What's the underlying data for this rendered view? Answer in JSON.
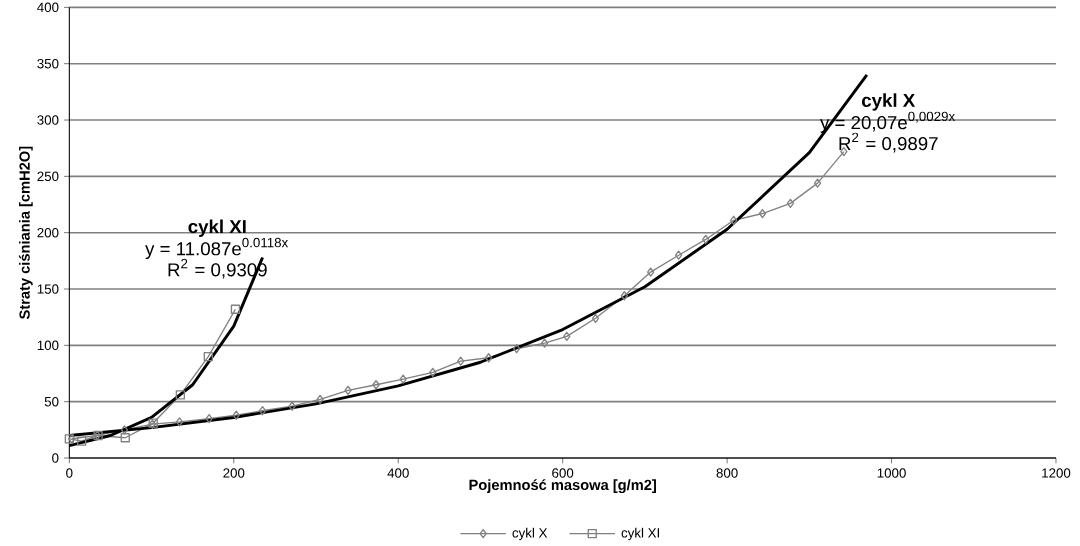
{
  "chart_data": {
    "type": "line",
    "xlabel": "Pojemność masowa [g/m2]",
    "ylabel": "Straty ciśniania [cmH2O]",
    "xlim": [
      0,
      1200
    ],
    "xticks": [
      0,
      200,
      400,
      600,
      800,
      1000,
      1200
    ],
    "ylim": [
      0,
      400
    ],
    "yticks": [
      0,
      50,
      100,
      150,
      200,
      250,
      300,
      350,
      400
    ],
    "grid": "y",
    "legend": "bottom",
    "series": [
      {
        "name": "cykl X",
        "color": "#808080",
        "marker": "diamond",
        "x": [
          3,
          34,
          67,
          101,
          134,
          170,
          203,
          235,
          271,
          305,
          339,
          373,
          406,
          442,
          476,
          510,
          544,
          578,
          605,
          640,
          675,
          707,
          741,
          774,
          808,
          843,
          877,
          910,
          942
        ],
        "values": [
          17,
          20,
          25,
          30,
          32,
          35,
          38,
          42,
          46,
          52,
          60,
          65,
          70,
          76,
          86,
          89,
          97,
          102,
          108,
          124,
          144,
          165,
          180,
          194,
          211,
          217,
          226,
          244,
          272
        ]
      },
      {
        "name": "cykl XI",
        "color": "#808080",
        "marker": "square",
        "x": [
          0,
          15,
          35,
          68,
          102,
          135,
          169,
          202
        ],
        "values": [
          17,
          15,
          20,
          18,
          31,
          56,
          90,
          132
        ]
      },
      {
        "color": "#000000",
        "marker": "none",
        "x": [
          0,
          100,
          200,
          300,
          400,
          500,
          600,
          700,
          800,
          900,
          970
        ],
        "values": [
          20,
          27,
          36,
          48,
          64,
          85,
          114,
          152,
          203,
          271,
          340
        ]
      },
      {
        "color": "#000000",
        "marker": "none",
        "x": [
          0,
          50,
          100,
          150,
          200,
          235
        ],
        "values": [
          11,
          20,
          36,
          65,
          117,
          178
        ]
      }
    ],
    "annotations": [
      "cykl XI",
      "y = 11.087e$^{0.0118x}$",
      "R$^{2}$ = 0,9309",
      "cykl X",
      "y = 20,07e$^{0,0029x}$",
      "R$^{2}$ = 0,9897"
    ]
  }
}
